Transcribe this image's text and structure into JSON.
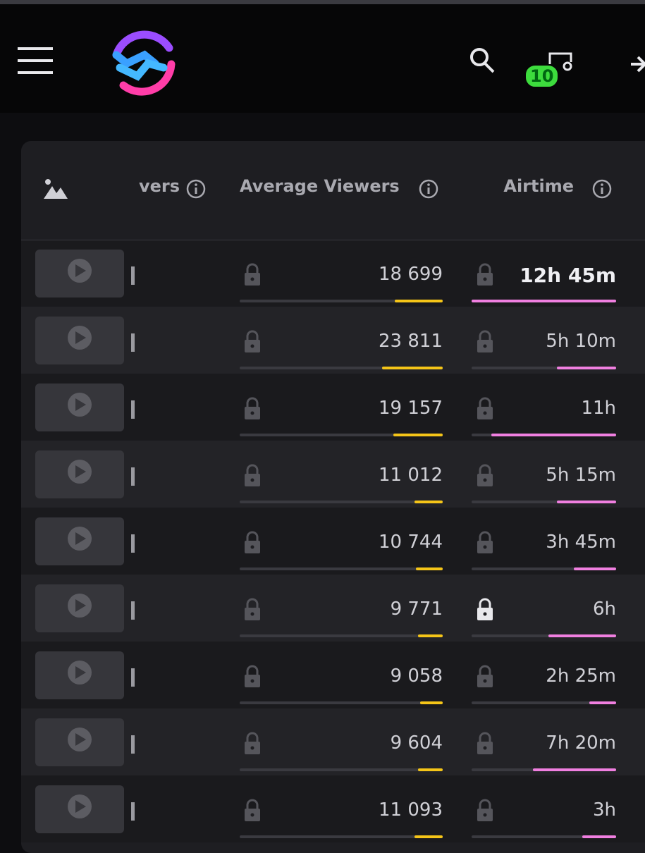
{
  "header": {
    "badge": "10"
  },
  "table": {
    "columns": [
      "vers",
      "Average Viewers",
      "Airtime"
    ],
    "rows": [
      [
        "18 699",
        "12h 45m"
      ],
      [
        "23 811",
        "5h 10m"
      ],
      [
        "19 157",
        "11h"
      ],
      [
        "11 012",
        "5h 15m"
      ],
      [
        "10 744",
        "3h 45m"
      ],
      [
        "9 771",
        "6h"
      ],
      [
        "9 058",
        "2h 25m"
      ],
      [
        "9 604",
        "7h 20m"
      ],
      [
        "11 093",
        "3h"
      ]
    ]
  }
}
